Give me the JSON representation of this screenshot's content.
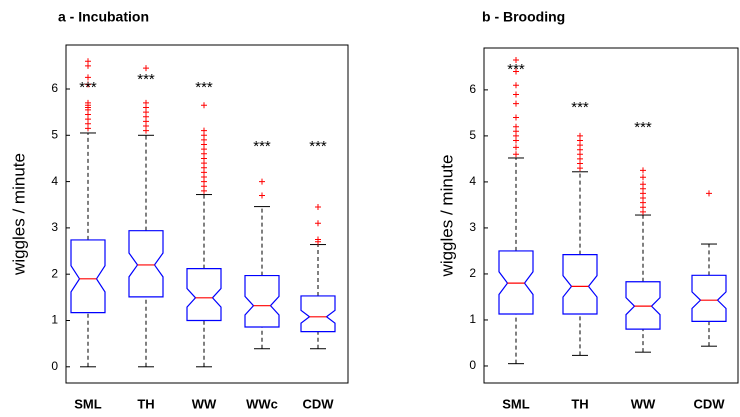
{
  "chart_data": [
    {
      "type": "box",
      "title": "a - Incubation",
      "y_label": "wiggles / minute",
      "categories": [
        "SML",
        "TH",
        "WW",
        "WWc",
        "CDW"
      ],
      "box_color": "#0000ff",
      "median_color": "#ff0000",
      "outlier_color": "#ff0000",
      "ylim": [
        -0.35,
        6.95
      ],
      "yticks": [
        0,
        1,
        2,
        3,
        4,
        5,
        6
      ],
      "boxes": [
        {
          "whisker_low": 0,
          "q1": 1.17,
          "median": 1.9,
          "q3": 2.74,
          "whisker_high": 5.05,
          "outliers": [
            5.15,
            5.25,
            5.35,
            5.45,
            5.55,
            5.6,
            5.65,
            5.7,
            6.1,
            6.25,
            6.5,
            6.6
          ]
        },
        {
          "whisker_low": 0,
          "q1": 1.51,
          "median": 2.2,
          "q3": 2.94,
          "whisker_high": 5.0,
          "outliers": [
            5.1,
            5.2,
            5.3,
            5.4,
            5.5,
            5.6,
            5.7,
            6.45
          ]
        },
        {
          "whisker_low": 0,
          "q1": 1.0,
          "median": 1.49,
          "q3": 2.12,
          "whisker_high": 3.72,
          "outliers": [
            3.8,
            3.9,
            4.0,
            4.1,
            4.2,
            4.3,
            4.4,
            4.5,
            4.6,
            4.7,
            4.8,
            4.9,
            5.0,
            5.1,
            5.65
          ]
        },
        {
          "whisker_low": 0.39,
          "q1": 0.86,
          "median": 1.32,
          "q3": 1.97,
          "whisker_high": 3.46,
          "outliers": [
            3.7,
            4.0
          ]
        },
        {
          "whisker_low": 0.39,
          "q1": 0.76,
          "median": 1.08,
          "q3": 1.53,
          "whisker_high": 2.64,
          "outliers": [
            2.7,
            2.75,
            3.1,
            3.45
          ]
        }
      ],
      "annotations": [
        "***",
        "***",
        "***",
        "***",
        "***"
      ]
    },
    {
      "type": "box",
      "title": "b - Brooding",
      "y_label": "wiggles / minute",
      "categories": [
        "SML",
        "TH",
        "WW",
        "CDW"
      ],
      "box_color": "#0000ff",
      "median_color": "#ff0000",
      "outlier_color": "#ff0000",
      "ylim": [
        -0.37,
        6.91
      ],
      "yticks": [
        0,
        1,
        2,
        3,
        4,
        5,
        6
      ],
      "boxes": [
        {
          "whisker_low": 0.05,
          "q1": 1.13,
          "median": 1.8,
          "q3": 2.5,
          "whisker_high": 4.52,
          "outliers": [
            4.6,
            4.75,
            4.9,
            5.0,
            5.1,
            5.2,
            5.4,
            5.7,
            5.9,
            6.1,
            6.4,
            6.65
          ]
        },
        {
          "whisker_low": 0.23,
          "q1": 1.13,
          "median": 1.73,
          "q3": 2.42,
          "whisker_high": 4.22,
          "outliers": [
            4.3,
            4.4,
            4.5,
            4.6,
            4.7,
            4.8,
            4.9,
            5.0
          ]
        },
        {
          "whisker_low": 0.3,
          "q1": 0.8,
          "median": 1.3,
          "q3": 1.83,
          "whisker_high": 3.28,
          "outliers": [
            3.35,
            3.45,
            3.55,
            3.65,
            3.75,
            3.85,
            3.95,
            4.1,
            4.25
          ]
        },
        {
          "whisker_low": 0.43,
          "q1": 0.97,
          "median": 1.43,
          "q3": 1.97,
          "whisker_high": 2.65,
          "outliers": [
            3.75
          ]
        }
      ],
      "annotations": [
        "***",
        "***",
        "***"
      ]
    }
  ]
}
